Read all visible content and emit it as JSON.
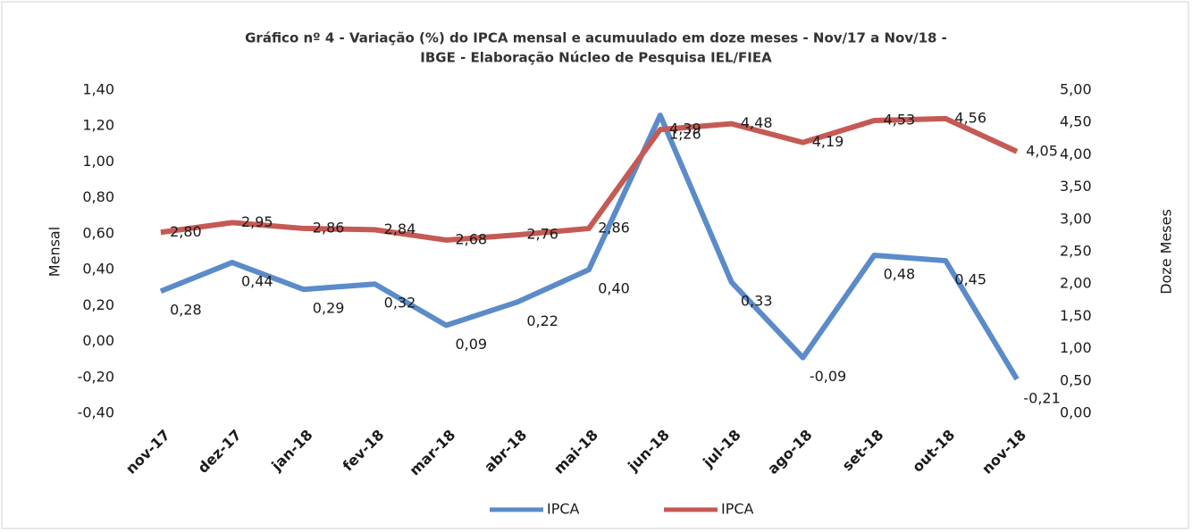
{
  "chart_data": {
    "type": "line",
    "title": [
      "Gráfico nº 4 - Variação (%) do IPCA mensal e acumuulado em doze meses - Nov/17 a Nov/18 -",
      "IBGE - Elaboração Núcleo de Pesquisa IEL/FIEA"
    ],
    "ylabel": "Mensal",
    "y2label": "Doze Meses",
    "categories": [
      "nov-17",
      "dez-17",
      "jan-18",
      "fev-18",
      "mar-18",
      "abr-18",
      "mai-18",
      "jun-18",
      "jul-18",
      "ago-18",
      "set-18",
      "out-18",
      "nov-18"
    ],
    "series": [
      {
        "name": "IPCA",
        "color": "#5b8bc8",
        "axis": "y",
        "values": [
          0.28,
          0.44,
          0.29,
          0.32,
          0.09,
          0.22,
          0.4,
          1.26,
          0.33,
          -0.09,
          0.48,
          0.45,
          -0.21
        ],
        "value_labels": [
          "0,28",
          "0,44",
          "0,29",
          "0,32",
          "0,09",
          "0,22",
          "0,40",
          "1,26",
          "0,33",
          "-0,09",
          "0,48",
          "0,45",
          "-0,21"
        ]
      },
      {
        "name": "IPCA",
        "color": "#c55a55",
        "axis": "y2",
        "values": [
          2.8,
          2.95,
          2.86,
          2.84,
          2.68,
          2.76,
          2.86,
          4.39,
          4.48,
          4.19,
          4.53,
          4.56,
          4.05
        ],
        "value_labels": [
          "2,80",
          "2,95",
          "2,86",
          "2,84",
          "2,68",
          "2,76",
          "2,86",
          "4,39",
          "4,48",
          "4,19",
          "4,53",
          "4,56",
          "4,05"
        ]
      }
    ],
    "ylim": [
      -0.4,
      1.4
    ],
    "yticks": [
      {
        "value": -0.4,
        "label": "-0,40"
      },
      {
        "value": -0.2,
        "label": "-0,20"
      },
      {
        "value": 0,
        "label": "0,00"
      },
      {
        "value": 0.2,
        "label": "0,20"
      },
      {
        "value": 0.4,
        "label": "0,40"
      },
      {
        "value": 0.6,
        "label": "0,60"
      },
      {
        "value": 0.8,
        "label": "0,80"
      },
      {
        "value": 1.0,
        "label": "1,00"
      },
      {
        "value": 1.2,
        "label": "1,20"
      },
      {
        "value": 1.4,
        "label": "1,40"
      }
    ],
    "y2lim": [
      0,
      5
    ],
    "y2ticks": [
      {
        "value": 0,
        "label": "0,00"
      },
      {
        "value": 0.5,
        "label": "0,50"
      },
      {
        "value": 1.0,
        "label": "1,00"
      },
      {
        "value": 1.5,
        "label": "1,50"
      },
      {
        "value": 2.0,
        "label": "2,00"
      },
      {
        "value": 2.5,
        "label": "2,50"
      },
      {
        "value": 3.0,
        "label": "3,00"
      },
      {
        "value": 3.5,
        "label": "3,50"
      },
      {
        "value": 4.0,
        "label": "4,00"
      },
      {
        "value": 4.5,
        "label": "4,50"
      },
      {
        "value": 5.0,
        "label": "5,00"
      }
    ],
    "grid": false,
    "legend": "bottom"
  }
}
